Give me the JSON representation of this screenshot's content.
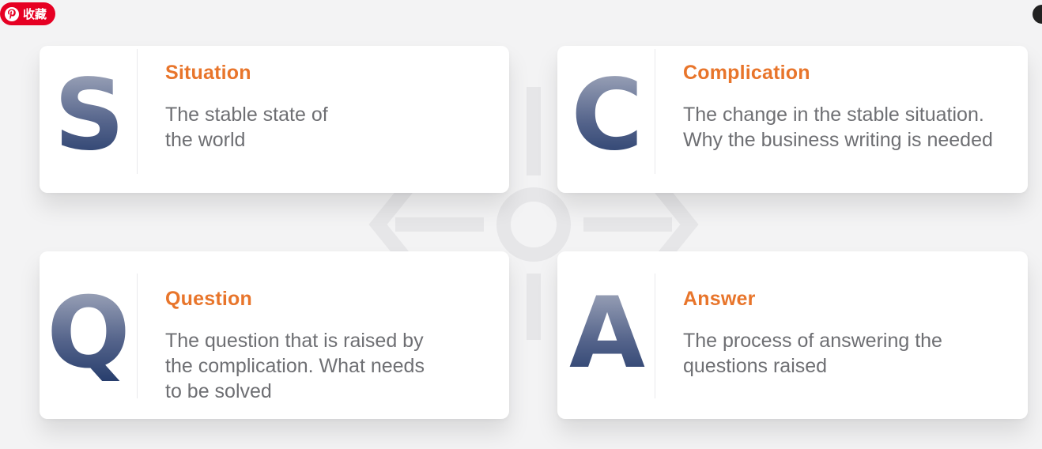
{
  "pin_button": {
    "label": "收藏",
    "icon": "pinterest-icon",
    "color": "#e60023"
  },
  "accent_color": "#e8752b",
  "letter_color_top": "#a3aabb",
  "letter_color_bottom": "#1d3566",
  "cards": [
    {
      "letter": "S",
      "title": "Situation",
      "lines": [
        "The stable state of",
        "the world"
      ]
    },
    {
      "letter": "C",
      "title": "Complication",
      "lines": [
        "The change in the stable situation.",
        "Why the business writing is needed"
      ]
    },
    {
      "letter": "Q",
      "title": "Question",
      "lines": [
        "The question that is raised by",
        "the complication. What needs",
        "to be solved"
      ]
    },
    {
      "letter": "A",
      "title": "Answer",
      "lines": [
        "The process of answering the",
        "questions raised"
      ]
    }
  ]
}
